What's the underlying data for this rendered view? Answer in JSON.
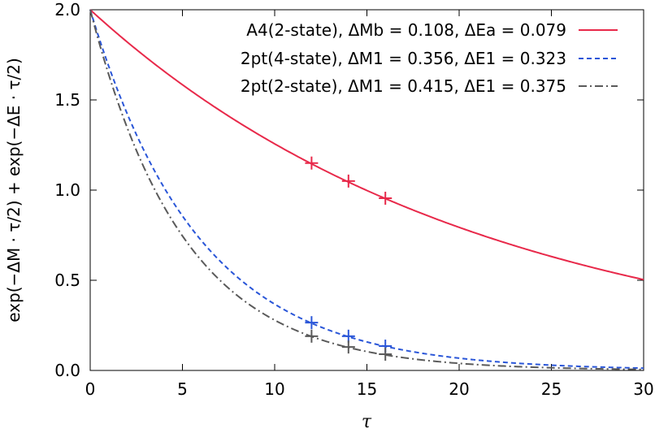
{
  "chart_data": {
    "type": "line",
    "title": "",
    "xlabel": "τ",
    "ylabel": "exp(−ΔM · τ/2) + exp(−ΔE · τ/2)",
    "xlim": [
      0,
      30
    ],
    "ylim": [
      0,
      2.0
    ],
    "xticks": [
      0,
      5,
      10,
      15,
      20,
      25,
      30
    ],
    "yticks": [
      0.0,
      0.5,
      1.0,
      1.5,
      2.0
    ],
    "xtick_labels": [
      "0",
      "5",
      "10",
      "15",
      "20",
      "25",
      "30"
    ],
    "ytick_labels": [
      "0.0",
      "0.5",
      "1.0",
      "1.5",
      "2.0"
    ],
    "legend_position": "top-right",
    "grid": false,
    "series": [
      {
        "name": "A4(2-state), ΔMb = 0.108, ΔEa = 0.079",
        "dM": 0.108,
        "dE": 0.079,
        "color": "#e8294a",
        "style": "solid",
        "points": [
          {
            "x": 12,
            "y": 1.15
          },
          {
            "x": 14,
            "y": 1.05
          },
          {
            "x": 16,
            "y": 0.955
          }
        ]
      },
      {
        "name": "2pt(4-state), ΔM1 = 0.356, ΔE1 = 0.323",
        "dM": 0.356,
        "dE": 0.323,
        "color": "#2a56d8",
        "style": "dashed",
        "points": [
          {
            "x": 12,
            "y": 0.265
          },
          {
            "x": 14,
            "y": 0.19
          },
          {
            "x": 16,
            "y": 0.135
          }
        ]
      },
      {
        "name": "2pt(2-state), ΔM1 = 0.415, ΔE1 = 0.375",
        "dM": 0.415,
        "dE": 0.375,
        "color": "#5a5a5a",
        "style": "dashdot",
        "points": [
          {
            "x": 12,
            "y": 0.19
          },
          {
            "x": 14,
            "y": 0.13
          },
          {
            "x": 16,
            "y": 0.09
          }
        ]
      }
    ]
  }
}
